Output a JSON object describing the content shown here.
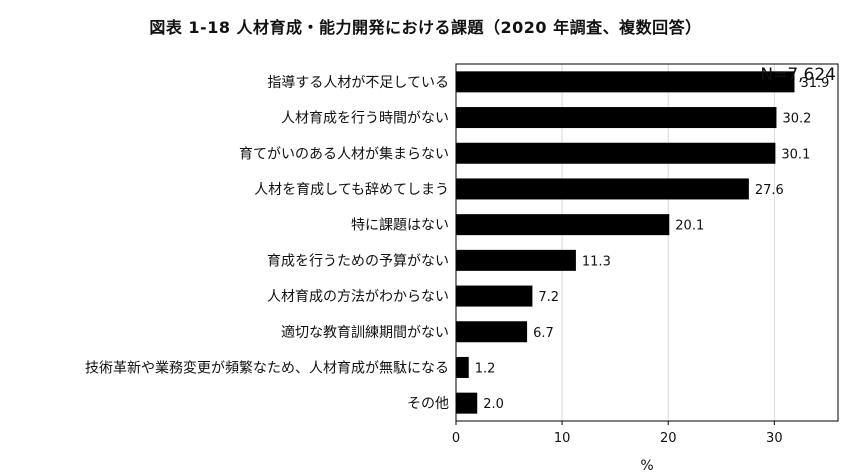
{
  "chart_data": {
    "type": "bar",
    "orientation": "horizontal",
    "title": "図表 1-18  人材育成・能力開発における課題（2020 年調査、複数回答）",
    "annotation": "N=7,624",
    "xlabel": "%",
    "ylabel": "",
    "xlim": [
      0,
      36
    ],
    "xticks": [
      0,
      10,
      20,
      30
    ],
    "grid": "vertical",
    "categories": [
      "指導する人材が不足している",
      "人材育成を行う時間がない",
      "育てがいのある人材が集まらない",
      "人材を育成しても辞めてしまう",
      "特に課題はない",
      "育成を行うための予算がない",
      "人材育成の方法がわからない",
      "適切な教育訓練期間がない",
      "技術革新や業務変更が頻繁なため、人材育成が無駄になる",
      "その他"
    ],
    "values": [
      31.9,
      30.2,
      30.1,
      27.6,
      20.1,
      11.3,
      7.2,
      6.7,
      1.2,
      2.0
    ],
    "value_labels": [
      "31.9",
      "30.2",
      "30.1",
      "27.6",
      "20.1",
      "11.3",
      "7.2",
      "6.7",
      "1.2",
      "2.0"
    ],
    "bar_color": "#000000",
    "grid_color": "#d9d9d9"
  }
}
